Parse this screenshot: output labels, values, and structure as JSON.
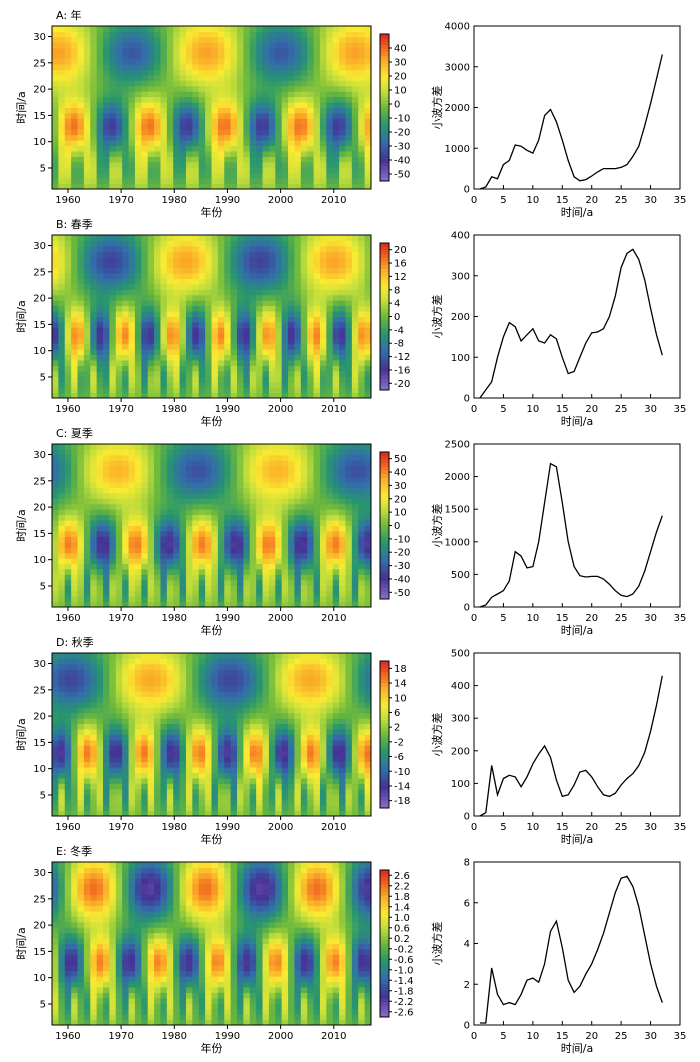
{
  "figure": {
    "panels": [
      {
        "id": "A",
        "title": "A: 年",
        "heatmap": {
          "type": "heatmap",
          "xlabel": "年份",
          "ylabel": "时间/a",
          "xlim": [
            1957,
            2017
          ],
          "ylim": [
            1,
            32
          ],
          "xticks": [
            1960,
            1970,
            1980,
            1990,
            2000,
            2010
          ],
          "yticks": [
            5,
            10,
            15,
            20,
            25,
            30
          ],
          "colorbar": {
            "min": -55,
            "max": 50,
            "ticks": [
              "40",
              "30",
              "20",
              "10",
              "0",
              "-10",
              "-20",
              "-30",
              "-40",
              "-50"
            ],
            "tick_values": [
              40,
              30,
              20,
              10,
              0,
              -10,
              -20,
              -30,
              -40,
              -50
            ]
          },
          "amplitude": 48
        },
        "line": {
          "type": "line",
          "xlabel": "时间/a",
          "ylabel": "小波方差",
          "xlim": [
            0,
            35
          ],
          "ylim": [
            0,
            4000
          ],
          "xticks": [
            0,
            5,
            10,
            15,
            20,
            25,
            30,
            35
          ],
          "yticks": [
            0,
            1000,
            2000,
            3000,
            4000
          ],
          "x": [
            1,
            2,
            3,
            4,
            5,
            6,
            7,
            8,
            9,
            10,
            11,
            12,
            13,
            14,
            15,
            16,
            17,
            18,
            19,
            20,
            21,
            22,
            23,
            24,
            25,
            26,
            27,
            28,
            29,
            30,
            31,
            32
          ],
          "y": [
            0,
            50,
            300,
            250,
            600,
            700,
            1080,
            1050,
            950,
            880,
            1200,
            1800,
            1950,
            1650,
            1200,
            700,
            300,
            200,
            230,
            320,
            420,
            500,
            500,
            500,
            530,
            600,
            800,
            1050,
            1550,
            2100,
            2700,
            3300
          ]
        }
      },
      {
        "id": "B",
        "title": "B: 春季",
        "heatmap": {
          "type": "heatmap",
          "xlabel": "年份",
          "ylabel": "时间/a",
          "xlim": [
            1957,
            2017
          ],
          "ylim": [
            1,
            32
          ],
          "xticks": [
            1960,
            1970,
            1980,
            1990,
            2000,
            2010
          ],
          "yticks": [
            5,
            10,
            15,
            20,
            25,
            30
          ],
          "colorbar": {
            "min": -22,
            "max": 22,
            "ticks": [
              "20",
              "16",
              "12",
              "8",
              "4",
              "0",
              "-4",
              "-8",
              "-12",
              "-16",
              "-20"
            ],
            "tick_values": [
              20,
              16,
              12,
              8,
              4,
              0,
              -4,
              -8,
              -12,
              -16,
              -20
            ]
          },
          "amplitude": 20
        },
        "line": {
          "type": "line",
          "xlabel": "时间/a",
          "ylabel": "小波方差",
          "xlim": [
            0,
            35
          ],
          "ylim": [
            0,
            400
          ],
          "xticks": [
            0,
            5,
            10,
            15,
            20,
            25,
            30,
            35
          ],
          "yticks": [
            0,
            100,
            200,
            300,
            400
          ],
          "x": [
            1,
            2,
            3,
            4,
            5,
            6,
            7,
            8,
            9,
            10,
            11,
            12,
            13,
            14,
            15,
            16,
            17,
            18,
            19,
            20,
            21,
            22,
            23,
            24,
            25,
            26,
            27,
            28,
            29,
            30,
            31,
            32
          ],
          "y": [
            0,
            20,
            40,
            100,
            150,
            185,
            175,
            140,
            155,
            170,
            140,
            135,
            155,
            145,
            100,
            60,
            65,
            100,
            135,
            160,
            162,
            170,
            200,
            250,
            320,
            355,
            365,
            340,
            290,
            220,
            155,
            105
          ]
        }
      },
      {
        "id": "C",
        "title": "C: 夏季",
        "heatmap": {
          "type": "heatmap",
          "xlabel": "年份",
          "ylabel": "时间/a",
          "xlim": [
            1957,
            2017
          ],
          "ylim": [
            1,
            32
          ],
          "xticks": [
            1960,
            1970,
            1980,
            1990,
            2000,
            2010
          ],
          "yticks": [
            5,
            10,
            15,
            20,
            25,
            30
          ],
          "colorbar": {
            "min": -55,
            "max": 55,
            "ticks": [
              "50",
              "40",
              "30",
              "20",
              "10",
              "0",
              "-10",
              "-20",
              "-30",
              "-40",
              "-50"
            ],
            "tick_values": [
              50,
              40,
              30,
              20,
              10,
              0,
              -10,
              -20,
              -30,
              -40,
              -50
            ]
          },
          "amplitude": 52
        },
        "line": {
          "type": "line",
          "xlabel": "时间/a",
          "ylabel": "小波方差",
          "xlim": [
            0,
            35
          ],
          "ylim": [
            0,
            2500
          ],
          "xticks": [
            0,
            5,
            10,
            15,
            20,
            25,
            30,
            35
          ],
          "yticks": [
            0,
            500,
            1000,
            1500,
            2000,
            2500
          ],
          "x": [
            1,
            2,
            3,
            4,
            5,
            6,
            7,
            8,
            9,
            10,
            11,
            12,
            13,
            14,
            15,
            16,
            17,
            18,
            19,
            20,
            21,
            22,
            23,
            24,
            25,
            26,
            27,
            28,
            29,
            30,
            31,
            32
          ],
          "y": [
            0,
            30,
            150,
            200,
            250,
            400,
            850,
            780,
            600,
            620,
            1000,
            1600,
            2200,
            2150,
            1600,
            1000,
            620,
            480,
            460,
            470,
            470,
            430,
            350,
            250,
            180,
            160,
            200,
            320,
            550,
            850,
            1150,
            1400
          ]
        }
      },
      {
        "id": "D",
        "title": "D: 秋季",
        "heatmap": {
          "type": "heatmap",
          "xlabel": "年份",
          "ylabel": "时间/a",
          "xlim": [
            1957,
            2017
          ],
          "ylim": [
            1,
            32
          ],
          "xticks": [
            1960,
            1970,
            1980,
            1990,
            2000,
            2010
          ],
          "yticks": [
            5,
            10,
            15,
            20,
            25,
            30
          ],
          "colorbar": {
            "min": -20,
            "max": 20,
            "ticks": [
              "18",
              "14",
              "10",
              "6",
              "2",
              "-2",
              "-6",
              "-10",
              "-14",
              "-18"
            ],
            "tick_values": [
              18,
              14,
              10,
              6,
              2,
              -2,
              -6,
              -10,
              -14,
              -18
            ]
          },
          "amplitude": 19
        },
        "line": {
          "type": "line",
          "xlabel": "时间/a",
          "ylabel": "小波方差",
          "xlim": [
            0,
            35
          ],
          "ylim": [
            0,
            500
          ],
          "xticks": [
            0,
            5,
            10,
            15,
            20,
            25,
            30,
            35
          ],
          "yticks": [
            0,
            100,
            200,
            300,
            400,
            500
          ],
          "x": [
            1,
            2,
            3,
            4,
            5,
            6,
            7,
            8,
            9,
            10,
            11,
            12,
            13,
            14,
            15,
            16,
            17,
            18,
            19,
            20,
            21,
            22,
            23,
            24,
            25,
            26,
            27,
            28,
            29,
            30,
            31,
            32
          ],
          "y": [
            0,
            10,
            155,
            65,
            115,
            125,
            120,
            90,
            120,
            160,
            190,
            215,
            180,
            110,
            60,
            65,
            95,
            135,
            140,
            120,
            90,
            65,
            60,
            70,
            95,
            115,
            130,
            155,
            195,
            260,
            340,
            430
          ]
        }
      },
      {
        "id": "E",
        "title": "E: 冬季",
        "heatmap": {
          "type": "heatmap",
          "xlabel": "年份",
          "ylabel": "时间/a",
          "xlim": [
            1957,
            2017
          ],
          "ylim": [
            1,
            32
          ],
          "xticks": [
            1960,
            1970,
            1980,
            1990,
            2000,
            2010
          ],
          "yticks": [
            5,
            10,
            15,
            20,
            25,
            30
          ],
          "colorbar": {
            "min": -2.8,
            "max": 2.8,
            "ticks": [
              "2.6",
              "2.2",
              "1.8",
              "1.4",
              "1.0",
              "0.6",
              "0.2",
              "-0.2",
              "-0.6",
              "-1.0",
              "-1.4",
              "-1.8",
              "-2.2",
              "-2.6"
            ],
            "tick_values": [
              2.6,
              2.2,
              1.8,
              1.4,
              1.0,
              0.6,
              0.2,
              -0.2,
              -0.6,
              -1.0,
              -1.4,
              -1.8,
              -2.2,
              -2.6
            ]
          },
          "amplitude": 2.6
        },
        "line": {
          "type": "line",
          "xlabel": "时间/a",
          "ylabel": "小波方差",
          "xlim": [
            0,
            35
          ],
          "ylim": [
            0,
            8
          ],
          "xticks": [
            0,
            5,
            10,
            15,
            20,
            25,
            30,
            35
          ],
          "yticks": [
            0,
            2,
            4,
            6,
            8
          ],
          "x": [
            1,
            2,
            3,
            4,
            5,
            6,
            7,
            8,
            9,
            10,
            11,
            12,
            13,
            14,
            15,
            16,
            17,
            18,
            19,
            20,
            21,
            22,
            23,
            24,
            25,
            26,
            27,
            28,
            29,
            30,
            31,
            32
          ],
          "y": [
            0.1,
            0.1,
            2.8,
            1.5,
            1.0,
            1.1,
            1.0,
            1.5,
            2.2,
            2.3,
            2.1,
            3.0,
            4.6,
            5.1,
            3.8,
            2.2,
            1.6,
            1.9,
            2.5,
            3.0,
            3.7,
            4.5,
            5.5,
            6.5,
            7.2,
            7.3,
            6.8,
            5.8,
            4.4,
            3.0,
            1.9,
            1.1
          ]
        }
      }
    ]
  }
}
